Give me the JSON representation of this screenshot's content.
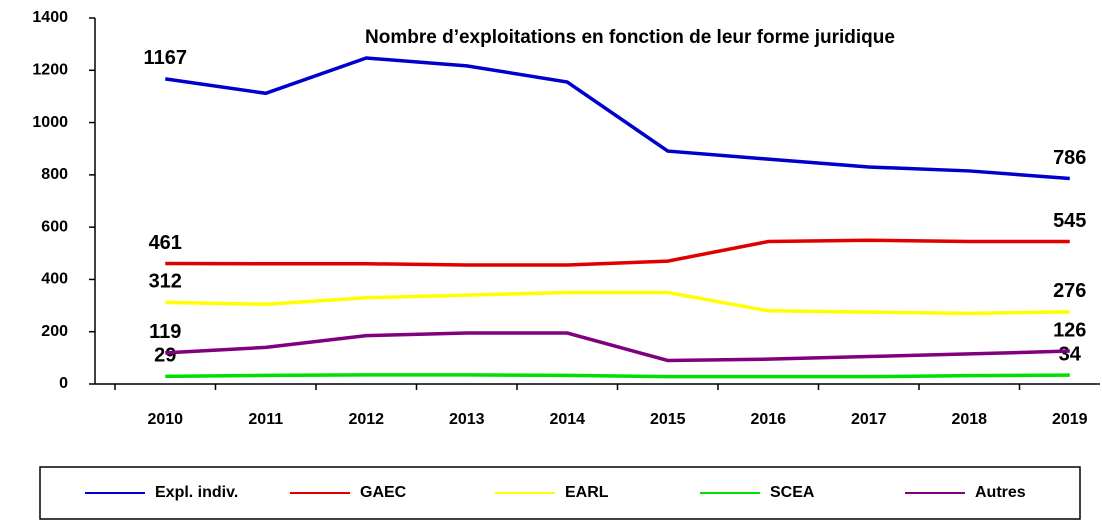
{
  "chart_data": {
    "type": "line",
    "title": "Nombre d’exploitations en fonction de leur forme juridique",
    "categories": [
      "2010",
      "2011",
      "2012",
      "2013",
      "2014",
      "2015",
      "2016",
      "2017",
      "2018",
      "2019"
    ],
    "series": [
      {
        "name": "Expl. indiv.",
        "color": "#0000cc",
        "values": [
          1167,
          1112,
          1247,
          1217,
          1155,
          891,
          860,
          830,
          815,
          786
        ],
        "value_labels": [
          "1167",
          null,
          null,
          null,
          null,
          null,
          null,
          null,
          null,
          "786"
        ]
      },
      {
        "name": "GAEC",
        "color": "#e00000",
        "values": [
          461,
          460,
          460,
          455,
          455,
          470,
          545,
          550,
          545,
          545
        ],
        "value_labels": [
          "461",
          null,
          null,
          null,
          null,
          null,
          null,
          null,
          null,
          "545"
        ]
      },
      {
        "name": "EARL",
        "color": "#ffff00",
        "values": [
          312,
          305,
          330,
          340,
          350,
          350,
          280,
          275,
          270,
          276
        ],
        "value_labels": [
          "312",
          null,
          null,
          null,
          null,
          null,
          null,
          null,
          null,
          "276"
        ]
      },
      {
        "name": "SCEA",
        "color": "#00e000",
        "values": [
          29,
          33,
          35,
          35,
          33,
          28,
          28,
          28,
          32,
          34
        ],
        "value_labels": [
          "29",
          null,
          null,
          null,
          null,
          null,
          null,
          null,
          null,
          "34"
        ]
      },
      {
        "name": "Autres",
        "color": "#800080",
        "values": [
          119,
          140,
          185,
          195,
          195,
          90,
          95,
          105,
          115,
          126
        ],
        "value_labels": [
          "119",
          null,
          null,
          null,
          null,
          null,
          null,
          null,
          null,
          "126"
        ]
      }
    ],
    "ylim": [
      0,
      1400
    ],
    "yticks": [
      0,
      200,
      400,
      600,
      800,
      1000,
      1200,
      1400
    ],
    "grid": false
  }
}
